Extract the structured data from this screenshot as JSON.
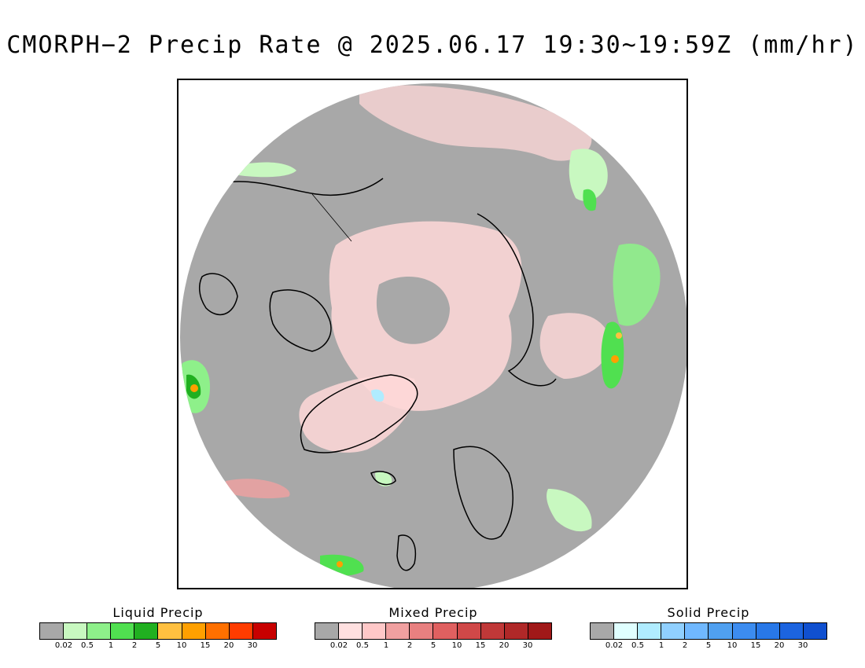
{
  "title": "CMORPH−2 Precip Rate @ 2025.06.17 19:30~19:59Z (mm/hr)",
  "map": {
    "projection": "north-polar stereographic",
    "background_color": "#a8a8a8",
    "coastline_color": "#000000"
  },
  "legends": [
    {
      "id": "liquid",
      "title": "Liquid Precip",
      "colors": [
        "#a8a8a8",
        "#c8f8c0",
        "#8ef08a",
        "#50e050",
        "#20b020",
        "#ffc040",
        "#ffa000",
        "#ff7000",
        "#ff3c00",
        "#c80000"
      ],
      "ticks": [
        "0.02",
        "0.5",
        "1",
        "2",
        "5",
        "10",
        "15",
        "20",
        "30"
      ]
    },
    {
      "id": "mixed",
      "title": "Mixed Precip",
      "colors": [
        "#a8a8a8",
        "#ffe0e0",
        "#ffc8c8",
        "#f0a0a0",
        "#e88080",
        "#e06060",
        "#d04848",
        "#c03838",
        "#b02828",
        "#a01818"
      ],
      "ticks": [
        "0.02",
        "0.5",
        "1",
        "2",
        "5",
        "10",
        "15",
        "20",
        "30"
      ]
    },
    {
      "id": "solid",
      "title": "Solid Precip",
      "colors": [
        "#a8a8a8",
        "#e0ffff",
        "#b0ecff",
        "#90d0ff",
        "#70b8ff",
        "#50a0f0",
        "#3c8cf0",
        "#2878e8",
        "#1c64e0",
        "#1050d0"
      ],
      "ticks": [
        "0.02",
        "0.5",
        "1",
        "2",
        "5",
        "10",
        "15",
        "20",
        "30"
      ]
    }
  ]
}
